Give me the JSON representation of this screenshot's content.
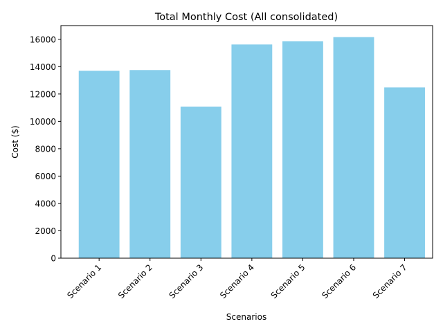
{
  "chart_data": {
    "type": "bar",
    "title": "Total Monthly Cost (All consolidated)",
    "xlabel": "Scenarios",
    "ylabel": "Cost ($)",
    "categories": [
      "Scenario 1",
      "Scenario 2",
      "Scenario 3",
      "Scenario 4",
      "Scenario 5",
      "Scenario 6",
      "Scenario 7"
    ],
    "values": [
      13700,
      13750,
      11080,
      15620,
      15860,
      16160,
      12480
    ],
    "ylim": [
      0,
      17000
    ],
    "yticks": [
      0,
      2000,
      4000,
      6000,
      8000,
      10000,
      12000,
      14000,
      16000
    ],
    "bar_color": "#87CEEB",
    "grid": false,
    "legend": "none"
  }
}
